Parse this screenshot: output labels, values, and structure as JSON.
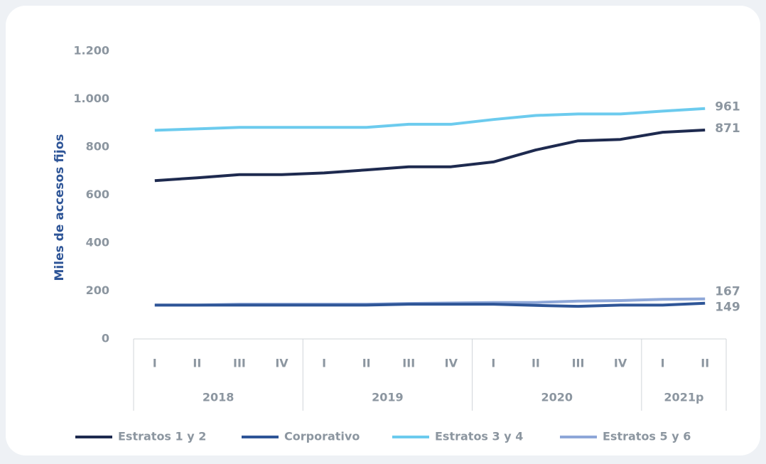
{
  "chart_data": {
    "type": "line",
    "y_label": "Miles de accesos fijos",
    "categories": [
      "I",
      "II",
      "III",
      "IV",
      "I",
      "II",
      "III",
      "IV",
      "I",
      "II",
      "III",
      "IV",
      "I",
      "II"
    ],
    "groups": [
      {
        "label": "2018",
        "span": 4
      },
      {
        "label": "2019",
        "span": 4
      },
      {
        "label": "2020",
        "span": 4
      },
      {
        "label": "2021p",
        "span": 2
      }
    ],
    "series": [
      {
        "name": "Estratos 1 y 2",
        "color": "#1e2a4f",
        "values": [
          660,
          672,
          685,
          685,
          692,
          705,
          718,
          718,
          738,
          788,
          826,
          832,
          862,
          871
        ]
      },
      {
        "name": "Corporativo",
        "color": "#2e5597",
        "values": [
          141,
          141,
          141,
          141,
          141,
          141,
          145,
          145,
          145,
          140,
          136,
          141,
          141,
          149
        ]
      },
      {
        "name": "Estratos 3 y 4",
        "color": "#6ccbee",
        "values": [
          870,
          876,
          882,
          882,
          882,
          882,
          895,
          895,
          915,
          932,
          938,
          938,
          950,
          961
        ]
      },
      {
        "name": "Estratos 5 y 6",
        "color": "#8ea7d8",
        "values": [
          141,
          141,
          145,
          145,
          145,
          145,
          148,
          150,
          152,
          152,
          158,
          160,
          165,
          167
        ]
      }
    ],
    "ylim": [
      0,
      1200
    ],
    "yticks": [
      0,
      200,
      400,
      600,
      800,
      {
        "value": 1000,
        "label": "1.000"
      },
      {
        "value": 1200,
        "label": "1.200"
      }
    ]
  }
}
